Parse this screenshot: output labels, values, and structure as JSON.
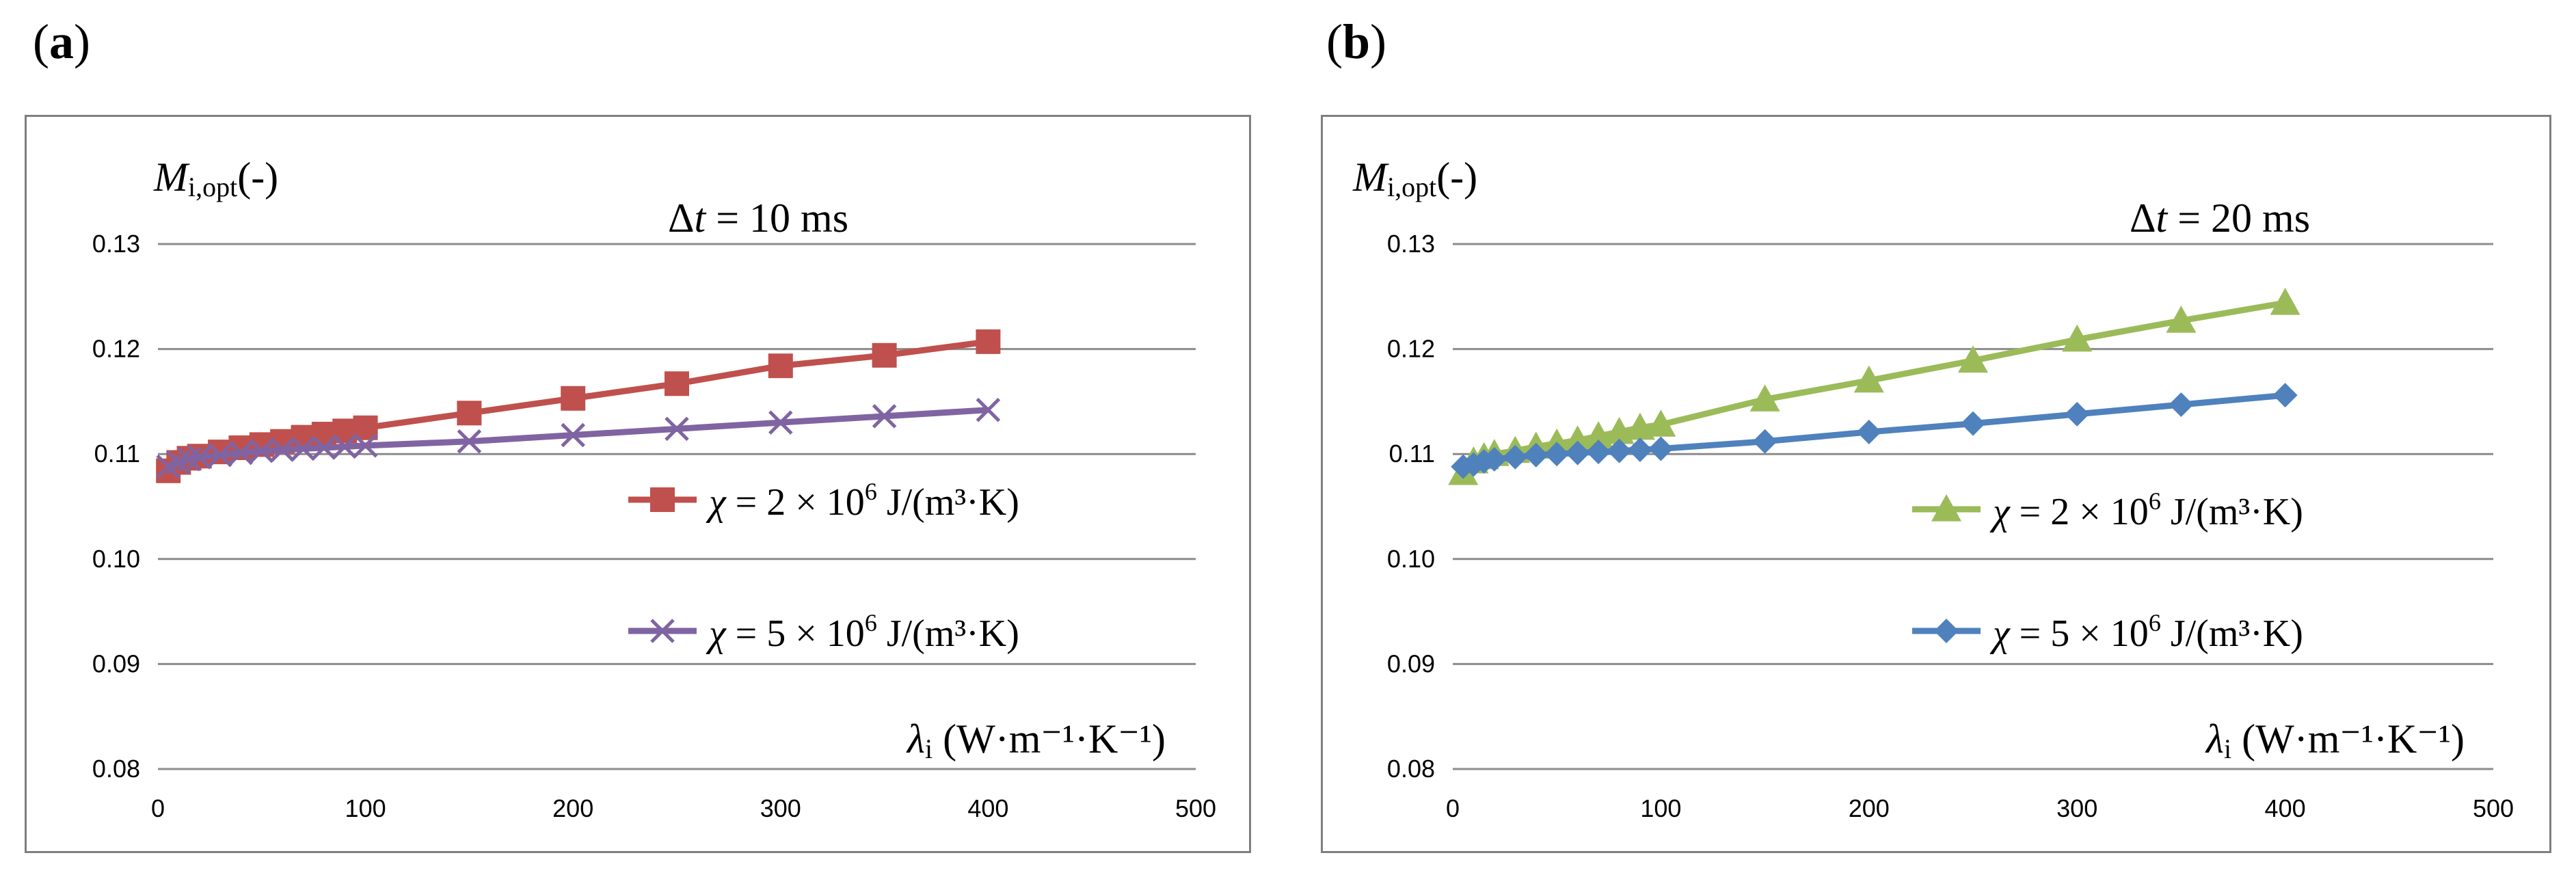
{
  "panels": [
    {
      "label_open": "(",
      "label_letter": "a",
      "label_close": ")"
    },
    {
      "label_open": "(",
      "label_letter": "b",
      "label_close": ")"
    }
  ],
  "chart_data": [
    {
      "type": "line",
      "ylabel_main": "M",
      "ylabel_sub": "i,opt",
      "ylabel_suffix": "(-)",
      "annotation_prefix": "Δ",
      "annotation_var": "t",
      "annotation_rest": " = 10 ms",
      "xlabel_var": "λ",
      "xlabel_sub": "i",
      "xlabel_units": " (W·m⁻¹·K⁻¹)",
      "xlim": [
        0,
        500
      ],
      "ylim": [
        0.08,
        0.13
      ],
      "xticks": [
        0,
        100,
        200,
        300,
        400,
        500
      ],
      "yticks": [
        0.08,
        0.09,
        0.1,
        0.11,
        0.12,
        0.13
      ],
      "ytick_labels": [
        "0.08",
        "0.09",
        "0.10",
        "0.11",
        "0.12",
        "0.13"
      ],
      "grid": true,
      "legend_position": "right",
      "x": [
        5,
        10,
        15,
        20,
        30,
        40,
        50,
        60,
        70,
        80,
        90,
        100,
        150,
        200,
        250,
        300,
        350,
        400
      ],
      "series": [
        {
          "legend_var": "χ",
          "legend_text": " = 2 × 10",
          "legend_exp": "6",
          "legend_units": " J/(m³·K)",
          "color": "#c0504d",
          "marker": "square",
          "values": [
            0.1084,
            0.1092,
            0.1096,
            0.1098,
            0.1102,
            0.1106,
            0.1109,
            0.1112,
            0.1116,
            0.1119,
            0.1122,
            0.1125,
            0.1139,
            0.1153,
            0.1167,
            0.1184,
            0.1194,
            0.1207
          ]
        },
        {
          "legend_var": "χ",
          "legend_text": " = 5 × 10",
          "legend_exp": "6",
          "legend_units": " J/(m³·K)",
          "color": "#8064a2",
          "marker": "x",
          "values": [
            0.1088,
            0.1092,
            0.1095,
            0.1097,
            0.1099,
            0.1101,
            0.1103,
            0.1104,
            0.1105,
            0.1106,
            0.1107,
            0.1108,
            0.1112,
            0.1118,
            0.1124,
            0.113,
            0.1136,
            0.1142
          ]
        }
      ]
    },
    {
      "type": "line",
      "ylabel_main": "M",
      "ylabel_sub": "i,opt",
      "ylabel_suffix": "(-)",
      "annotation_prefix": "Δ",
      "annotation_var": "t",
      "annotation_rest": " = 20 ms",
      "xlabel_var": "λ",
      "xlabel_sub": "i",
      "xlabel_units": " (W·m⁻¹·K⁻¹)",
      "xlim": [
        0,
        500
      ],
      "ylim": [
        0.08,
        0.13
      ],
      "xticks": [
        0,
        100,
        200,
        300,
        400,
        500
      ],
      "yticks": [
        0.08,
        0.09,
        0.1,
        0.11,
        0.12,
        0.13
      ],
      "ytick_labels": [
        "0.08",
        "0.09",
        "0.10",
        "0.11",
        "0.12",
        "0.13"
      ],
      "grid": true,
      "legend_position": "right",
      "x": [
        5,
        10,
        15,
        20,
        30,
        40,
        50,
        60,
        70,
        80,
        90,
        100,
        150,
        200,
        250,
        300,
        350,
        400
      ],
      "series": [
        {
          "legend_var": "χ",
          "legend_text": " = 2 × 10",
          "legend_exp": "6",
          "legend_units": " J/(m³·K)",
          "color": "#9bbb59",
          "marker": "triangle",
          "values": [
            0.1082,
            0.1093,
            0.1097,
            0.11,
            0.1103,
            0.1107,
            0.111,
            0.1113,
            0.1117,
            0.1121,
            0.1125,
            0.1128,
            0.1152,
            0.117,
            0.1189,
            0.1209,
            0.1227,
            0.1244
          ]
        },
        {
          "legend_var": "χ",
          "legend_text": " = 5 × 10",
          "legend_exp": "6",
          "legend_units": " J/(m³·K)",
          "color": "#4f81bd",
          "marker": "diamond",
          "values": [
            0.1088,
            0.109,
            0.1093,
            0.1095,
            0.1097,
            0.1099,
            0.11,
            0.1101,
            0.1102,
            0.1103,
            0.1104,
            0.1105,
            0.1112,
            0.1121,
            0.1129,
            0.1138,
            0.1147,
            0.1156
          ]
        }
      ]
    }
  ]
}
